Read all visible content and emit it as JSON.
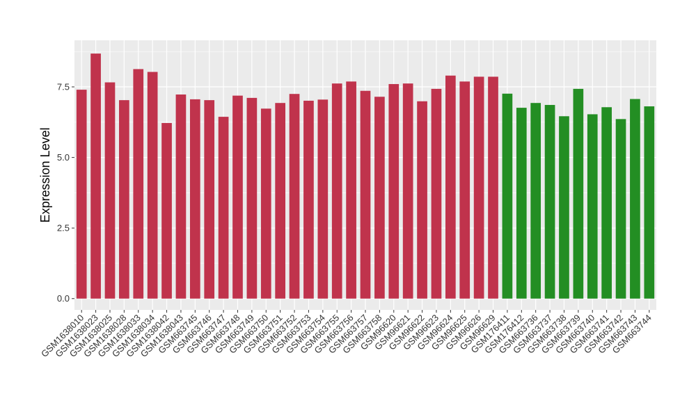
{
  "chart_data": {
    "type": "bar",
    "title": "",
    "xlabel": "",
    "ylabel": "Expression Level",
    "ylim": [
      -0.4,
      9.15
    ],
    "yticks": [
      0.0,
      2.5,
      5.0,
      7.5
    ],
    "ytick_labels": [
      "0.0",
      "2.5",
      "5.0",
      "7.5"
    ],
    "grid": true,
    "categories": [
      "GSM1638010",
      "GSM1638023",
      "GSM1638025",
      "GSM1638028",
      "GSM1638033",
      "GSM1638034",
      "GSM1638042",
      "GSM1638043",
      "GSM663745",
      "GSM663746",
      "GSM663747",
      "GSM663748",
      "GSM663749",
      "GSM663750",
      "GSM663751",
      "GSM663752",
      "GSM663753",
      "GSM663754",
      "GSM663755",
      "GSM663756",
      "GSM663757",
      "GSM663758",
      "GSM96620",
      "GSM96621",
      "GSM96622",
      "GSM96623",
      "GSM96624",
      "GSM96625",
      "GSM96626",
      "GSM96629",
      "GSM176411",
      "GSM176412",
      "GSM663736",
      "GSM663737",
      "GSM663738",
      "GSM663739",
      "GSM663740",
      "GSM663741",
      "GSM663742",
      "GSM663743",
      "GSM663744"
    ],
    "values": [
      7.4,
      8.68,
      7.66,
      7.03,
      8.13,
      8.03,
      6.22,
      7.23,
      7.06,
      7.03,
      6.44,
      7.19,
      7.11,
      6.73,
      6.93,
      7.25,
      7.01,
      7.05,
      7.62,
      7.69,
      7.36,
      7.15,
      7.6,
      7.62,
      6.99,
      7.43,
      7.9,
      7.69,
      7.86,
      7.86,
      7.26,
      6.76,
      6.93,
      6.86,
      6.46,
      7.43,
      6.53,
      6.78,
      6.36,
      7.07,
      6.81
    ],
    "groups": [
      "a",
      "a",
      "a",
      "a",
      "a",
      "a",
      "a",
      "a",
      "a",
      "a",
      "a",
      "a",
      "a",
      "a",
      "a",
      "a",
      "a",
      "a",
      "a",
      "a",
      "a",
      "a",
      "a",
      "a",
      "a",
      "a",
      "a",
      "a",
      "a",
      "a",
      "b",
      "b",
      "b",
      "b",
      "b",
      "b",
      "b",
      "b",
      "b",
      "b",
      "b"
    ],
    "group_colors": {
      "a": "#c0334c",
      "b": "#238e23"
    },
    "panel_background": "#ebebeb",
    "grid_color": "#ffffff"
  }
}
